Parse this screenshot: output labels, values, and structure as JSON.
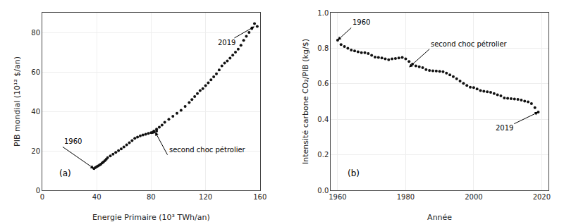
{
  "chart_data": [
    {
      "type": "scatter",
      "title": "(a)",
      "xlabel": "Energie Primaire (10³ TWh/an)",
      "ylabel": "PIB mondial (10¹² $/an)",
      "x": [
        38,
        39,
        40,
        41,
        42,
        43,
        44,
        45,
        46,
        47,
        48,
        50,
        52,
        54,
        56,
        58,
        60,
        62,
        64,
        66,
        68,
        70,
        72,
        74,
        76,
        78,
        80,
        82,
        84,
        82,
        81,
        82,
        84,
        86,
        88,
        90,
        93,
        96,
        99,
        102,
        105,
        108,
        110,
        112,
        114,
        116,
        118,
        120,
        122,
        124,
        126,
        128,
        130,
        132,
        134,
        136,
        138,
        140,
        142,
        144,
        146,
        148,
        150,
        152,
        154,
        156,
        158
      ],
      "values": [
        11,
        11.5,
        12,
        12.3,
        12.8,
        13.2,
        13.8,
        14.4,
        15.0,
        15.7,
        16.5,
        17.4,
        18.3,
        19.2,
        20.1,
        21.0,
        22.0,
        23.0,
        24.1,
        25.2,
        26.3,
        27.0,
        27.6,
        28.0,
        28.4,
        28.8,
        29.2,
        29.6,
        30.0,
        29.5,
        29.3,
        30.0,
        31.0,
        32.0,
        33.0,
        34.5,
        36.0,
        37.5,
        39.0,
        40.5,
        42.5,
        44.5,
        46.0,
        47.5,
        49.0,
        50.5,
        51.5,
        53.0,
        54.5,
        56.0,
        57.5,
        59.0,
        61.0,
        63.0,
        64.5,
        65.5,
        67.0,
        68.5,
        70.0,
        71.5,
        73.5,
        76.0,
        78.0,
        80.0,
        82.0,
        84.5,
        83.0
      ],
      "color": "#111111",
      "xlim": [
        0,
        160
      ],
      "ylim": [
        0,
        90
      ],
      "xticks": [
        0,
        40,
        80,
        120,
        160
      ],
      "yticks": [
        0,
        20,
        40,
        60,
        80
      ],
      "annotations": [
        {
          "text": "1960",
          "x": 38,
          "y": 11,
          "text_x": 15,
          "text_y": 22
        },
        {
          "text": "2019",
          "x": 156,
          "y": 83,
          "text_x": 128,
          "text_y": 72
        },
        {
          "text": "second choc pétrolier",
          "x": 83,
          "y": 29.5,
          "text_x": 92,
          "text_y": 18
        }
      ]
    },
    {
      "type": "scatter",
      "title": "(b)",
      "xlabel": "Année",
      "ylabel": "Intensité carbone CO₂/PIB (kg/$)",
      "x": [
        1960,
        1961,
        1962,
        1963,
        1964,
        1965,
        1966,
        1967,
        1968,
        1969,
        1970,
        1971,
        1972,
        1973,
        1974,
        1975,
        1976,
        1977,
        1978,
        1979,
        1980,
        1981,
        1982,
        1983,
        1984,
        1985,
        1986,
        1987,
        1988,
        1989,
        1990,
        1991,
        1992,
        1993,
        1994,
        1995,
        1996,
        1997,
        1998,
        1999,
        2000,
        2001,
        2002,
        2003,
        2004,
        2005,
        2006,
        2007,
        2008,
        2009,
        2010,
        2011,
        2012,
        2013,
        2014,
        2015,
        2016,
        2017,
        2018,
        2019
      ],
      "values": [
        0.845,
        0.82,
        0.81,
        0.8,
        0.79,
        0.785,
        0.78,
        0.775,
        0.775,
        0.77,
        0.76,
        0.75,
        0.748,
        0.745,
        0.74,
        0.735,
        0.74,
        0.742,
        0.745,
        0.748,
        0.74,
        0.725,
        0.71,
        0.7,
        0.695,
        0.69,
        0.68,
        0.675,
        0.673,
        0.672,
        0.67,
        0.668,
        0.66,
        0.65,
        0.64,
        0.628,
        0.615,
        0.602,
        0.59,
        0.58,
        0.578,
        0.57,
        0.562,
        0.558,
        0.555,
        0.552,
        0.545,
        0.538,
        0.532,
        0.52,
        0.518,
        0.516,
        0.514,
        0.512,
        0.508,
        0.502,
        0.498,
        0.488,
        0.465,
        0.44
      ],
      "color": "#111111",
      "xlim": [
        1958,
        2022
      ],
      "ylim": [
        0.0,
        1.0
      ],
      "xticks": [
        1960,
        1980,
        2000,
        2020
      ],
      "yticks": [
        {
          "value": 0.0,
          "label": "0.0"
        },
        0.2,
        0.4,
        0.6,
        0.8,
        {
          "value": 1.0,
          "label": "1.0"
        }
      ],
      "annotations": [
        {
          "text": "1960",
          "x": 1960,
          "y": 0.845,
          "text_x": 1964,
          "text_y": 0.915
        },
        {
          "text": "second choc pétrolier",
          "x": 1981,
          "y": 0.692,
          "text_x": 1987,
          "text_y": 0.795
        },
        {
          "text": "2019",
          "x": 2019,
          "y": 0.44,
          "text_x": 2006,
          "text_y": 0.32
        }
      ]
    }
  ]
}
